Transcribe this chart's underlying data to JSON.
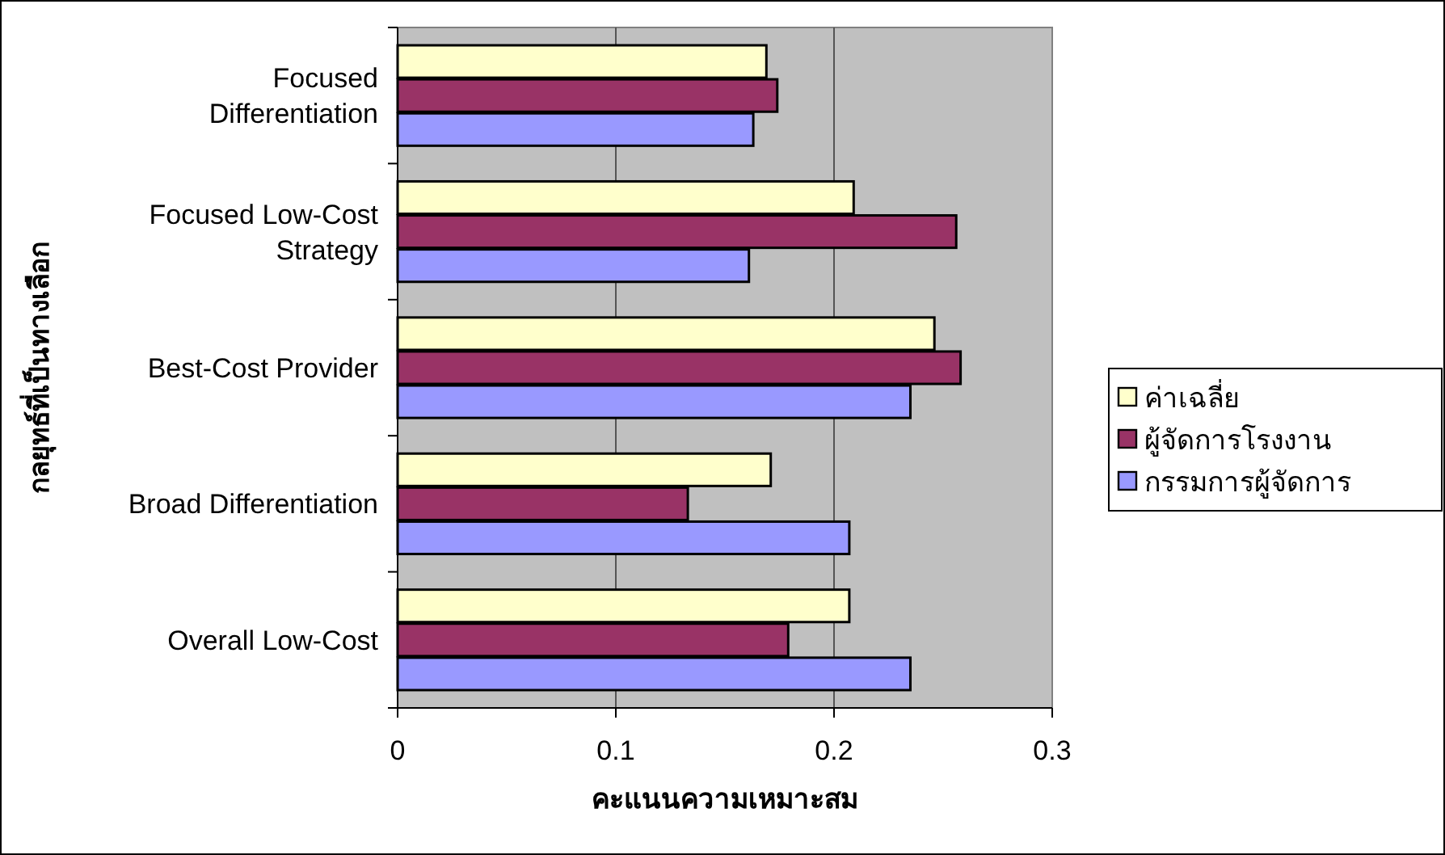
{
  "chart_data": {
    "type": "bar",
    "orientation": "horizontal",
    "xlabel": "คะแนนความเหมาะสม",
    "ylabel": "กลยุทธ์ที่เป็นทางเลือก",
    "categories": [
      "Focused Differentiation",
      "Focused Low-Cost Strategy",
      "Best-Cost Provider",
      "Broad Differentiation",
      "Overall Low-Cost"
    ],
    "series": [
      {
        "name": "ค่าเฉลี่ย",
        "color": "#ffffcc",
        "values": [
          0.169,
          0.209,
          0.246,
          0.171,
          0.207
        ]
      },
      {
        "name": "ผู้จัดการโรงงาน",
        "color": "#993366",
        "values": [
          0.174,
          0.256,
          0.258,
          0.133,
          0.179
        ]
      },
      {
        "name": "กรรมการผู้จัดการ",
        "color": "#9999ff",
        "values": [
          0.163,
          0.161,
          0.235,
          0.207,
          0.235
        ]
      }
    ],
    "xlim": [
      0,
      0.3
    ],
    "xticks": [
      0,
      0.1,
      0.2,
      0.3
    ],
    "grid": "x",
    "legend": "right"
  }
}
